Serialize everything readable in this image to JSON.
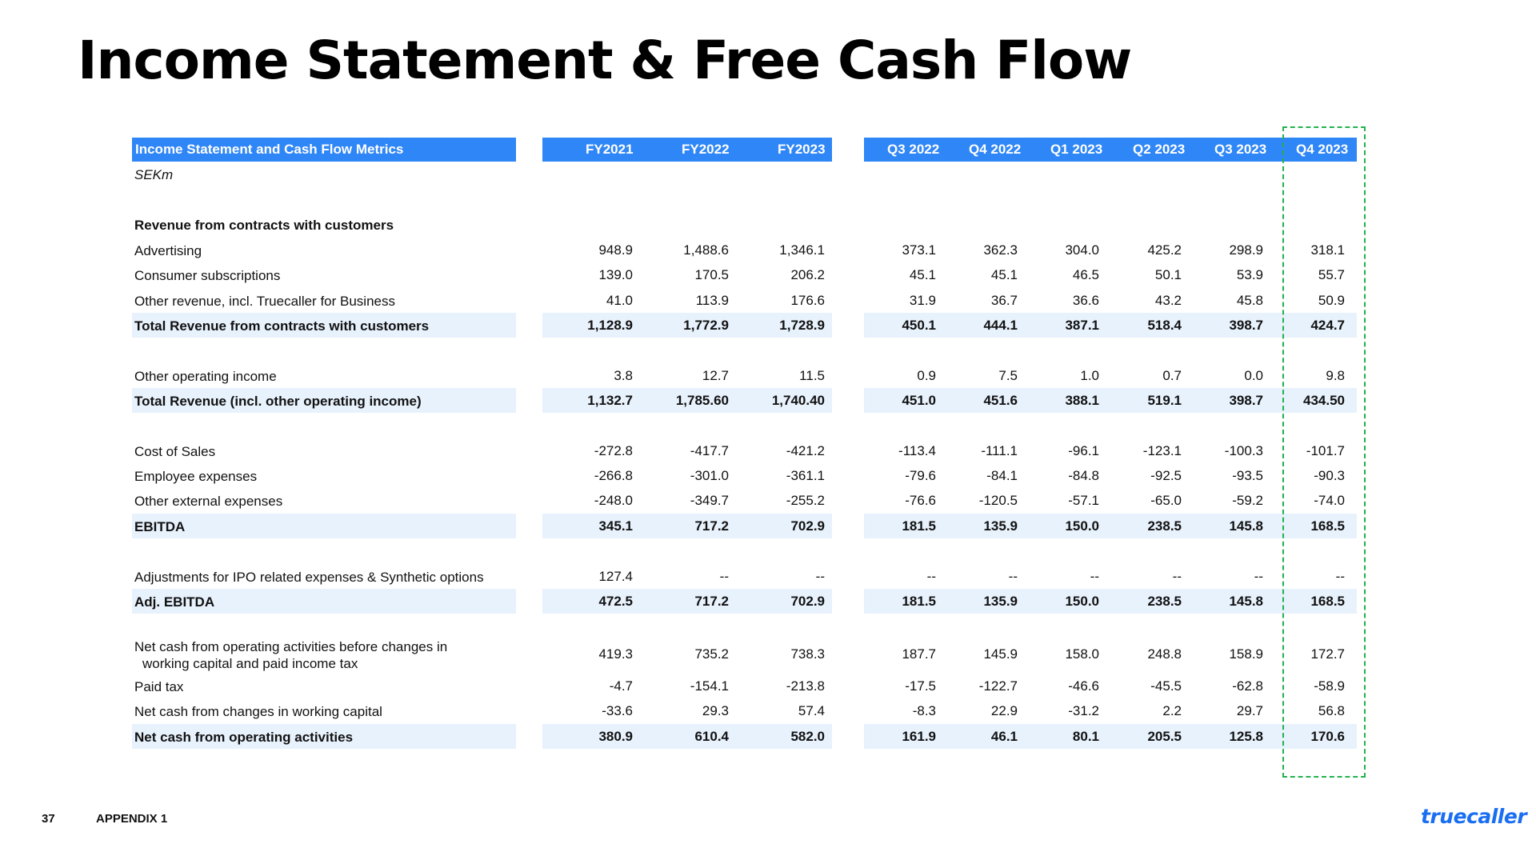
{
  "title": "Income Statement & Free Cash Flow",
  "table": {
    "header_label": "Income Statement and Cash Flow Metrics",
    "unit": "SEKm",
    "annual_columns": [
      "FY2021",
      "FY2022",
      "FY2023"
    ],
    "quarter_columns": [
      "Q3 2022",
      "Q4 2022",
      "Q1 2023",
      "Q2 2023",
      "Q3 2023",
      "Q4 2023"
    ],
    "section_revenue": "Revenue from contracts with customers",
    "rows": [
      {
        "label": "Advertising",
        "values": [
          "948.9",
          "1,488.6",
          "1,346.1",
          "373.1",
          "362.3",
          "304.0",
          "425.2",
          "298.9",
          "318.1"
        ]
      },
      {
        "label": "Consumer subscriptions",
        "values": [
          "139.0",
          "170.5",
          "206.2",
          "45.1",
          "45.1",
          "46.5",
          "50.1",
          "53.9",
          "55.7"
        ]
      },
      {
        "label": "Other revenue, incl. Truecaller for Business",
        "values": [
          "41.0",
          "113.9",
          "176.6",
          "31.9",
          "36.7",
          "36.6",
          "43.2",
          "45.8",
          "50.9"
        ]
      },
      {
        "label": "Total Revenue from contracts with customers",
        "values": [
          "1,128.9",
          "1,772.9",
          "1,728.9",
          "450.1",
          "444.1",
          "387.1",
          "518.4",
          "398.7",
          "424.7"
        ]
      },
      {
        "label": "Other operating income",
        "values": [
          "3.8",
          "12.7",
          "11.5",
          "0.9",
          "7.5",
          "1.0",
          "0.7",
          "0.0",
          "9.8"
        ]
      },
      {
        "label": "Total Revenue (incl. other operating income)",
        "values": [
          "1,132.7",
          "1,785.60",
          "1,740.40",
          "451.0",
          "451.6",
          "388.1",
          "519.1",
          "398.7",
          "434.50"
        ]
      },
      {
        "label": "Cost of Sales",
        "values": [
          "-272.8",
          "-417.7",
          "-421.2",
          "-113.4",
          "-111.1",
          "-96.1",
          "-123.1",
          "-100.3",
          "-101.7"
        ]
      },
      {
        "label": "Employee expenses",
        "values": [
          "-266.8",
          "-301.0",
          "-361.1",
          "-79.6",
          "-84.1",
          "-84.8",
          "-92.5",
          "-93.5",
          "-90.3"
        ]
      },
      {
        "label": "Other external expenses",
        "values": [
          "-248.0",
          "-349.7",
          "-255.2",
          "-76.6",
          "-120.5",
          "-57.1",
          "-65.0",
          "-59.2",
          "-74.0"
        ]
      },
      {
        "label": "EBITDA",
        "values": [
          "345.1",
          "717.2",
          "702.9",
          "181.5",
          "135.9",
          "150.0",
          "238.5",
          "145.8",
          "168.5"
        ]
      },
      {
        "label": "Adjustments for IPO related expenses & Synthetic options",
        "values": [
          "127.4",
          "--",
          "--",
          "--",
          "--",
          "--",
          "--",
          "--",
          "--"
        ]
      },
      {
        "label": "Adj. EBITDA",
        "values": [
          "472.5",
          "717.2",
          "702.9",
          "181.5",
          "135.9",
          "150.0",
          "238.5",
          "145.8",
          "168.5"
        ]
      },
      {
        "label": "Net cash from operating activities before changes in",
        "label2": "working capital and paid income tax",
        "values": [
          "419.3",
          "735.2",
          "738.3",
          "187.7",
          "145.9",
          "158.0",
          "248.8",
          "158.9",
          "172.7"
        ]
      },
      {
        "label": "Paid tax",
        "values": [
          "-4.7",
          "-154.1",
          "-213.8",
          "-17.5",
          "-122.7",
          "-46.6",
          "-45.5",
          "-62.8",
          "-58.9"
        ]
      },
      {
        "label": "Net cash from changes in working capital",
        "values": [
          "-33.6",
          "29.3",
          "57.4",
          "-8.3",
          "22.9",
          "-31.2",
          "2.2",
          "29.7",
          "56.8"
        ]
      },
      {
        "label": "Net cash from operating activities",
        "values": [
          "380.9",
          "610.4",
          "582.0",
          "161.9",
          "46.1",
          "80.1",
          "205.5",
          "125.8",
          "170.6"
        ]
      }
    ]
  },
  "footer": {
    "page_number": "37",
    "section": "APPENDIX 1",
    "logo_text": "truecaller"
  },
  "colors": {
    "header_blue": "#2f86f6",
    "band_light_blue": "#e8f2fd",
    "highlight_green": "#22b14c",
    "logo_blue": "#1a6ef2"
  }
}
